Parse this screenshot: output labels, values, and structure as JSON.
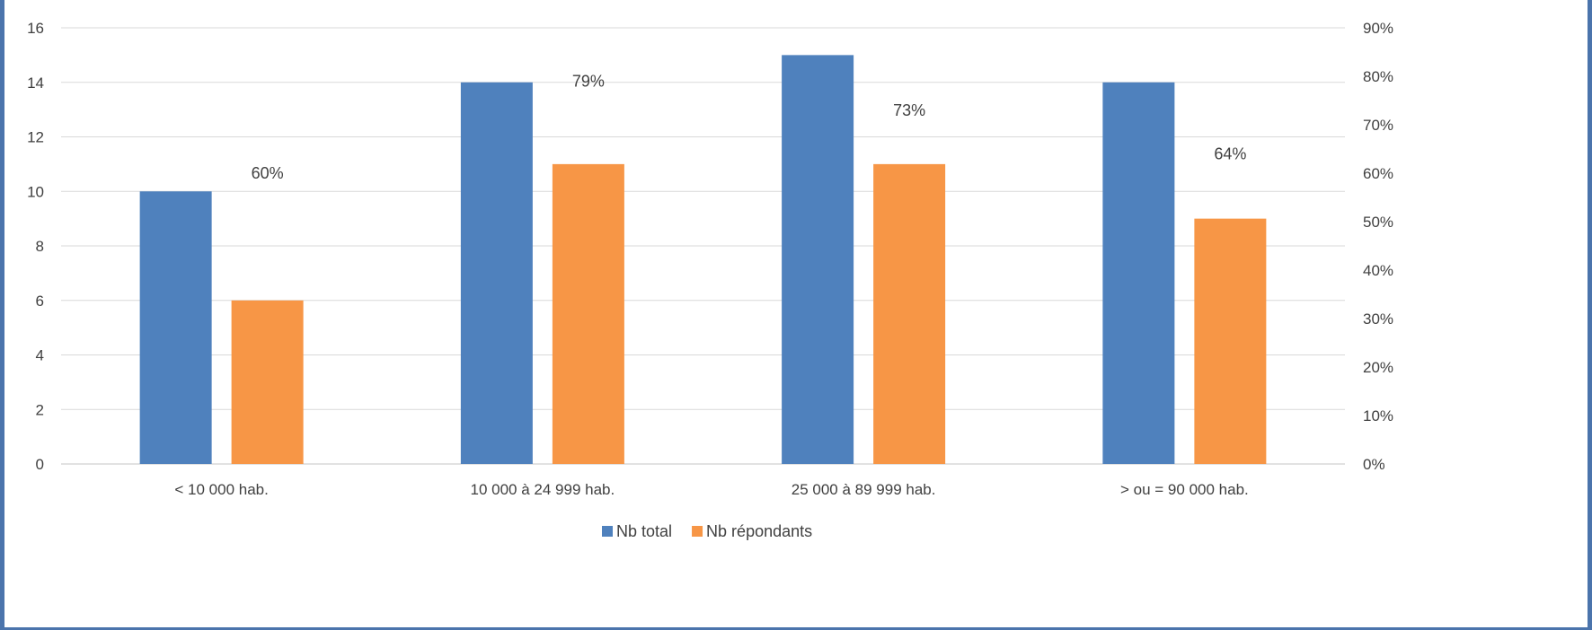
{
  "chart_data": {
    "type": "bar",
    "title": "",
    "categories": [
      "< 10 000 hab.",
      "10 000 à 24 999 hab.",
      "25 000 à 89 999 hab.",
      "> ou = 90 000 hab."
    ],
    "series": [
      {
        "name": "Nb total",
        "values": [
          10,
          14,
          15,
          14
        ],
        "color": "#4f81bd"
      },
      {
        "name": "Nb répondants",
        "values": [
          6,
          11,
          11,
          9
        ],
        "color": "#f79646"
      },
      {
        "name": "",
        "axis": "secondary",
        "type": "label",
        "values": [
          0.6,
          0.79,
          0.73,
          0.64
        ],
        "labels": [
          "60%",
          "79%",
          "73%",
          "64%"
        ]
      }
    ],
    "ylim": [
      0,
      16
    ],
    "yticks": [
      "0",
      "2",
      "4",
      "6",
      "8",
      "10",
      "12",
      "14",
      "16"
    ],
    "y2lim": [
      0,
      0.9
    ],
    "y2ticks": [
      "0%",
      "10%",
      "20%",
      "30%",
      "40%",
      "50%",
      "60%",
      "70%",
      "80%",
      "90%"
    ],
    "grid": true,
    "legend": "bottom-center",
    "gridline_color": "#d9d9d9",
    "text_color": "#404040"
  }
}
